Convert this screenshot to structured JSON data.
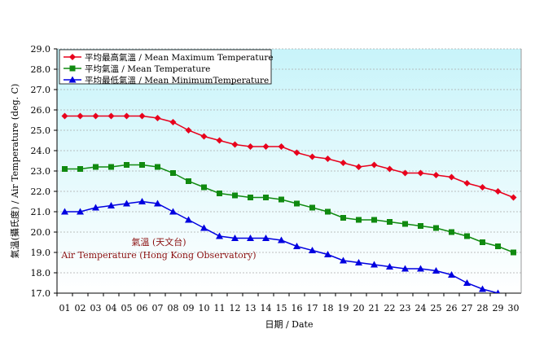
{
  "chart_data": {
    "type": "line",
    "xlabel": "日期 / Date",
    "ylabel": "氣溫(攝氏度) / Air Temperature (deg. C)",
    "ylim": [
      17.0,
      29.0
    ],
    "ytick_step": 1.0,
    "grid": true,
    "legend_position": "top-left",
    "categories": [
      "01",
      "02",
      "03",
      "04",
      "05",
      "06",
      "07",
      "08",
      "09",
      "10",
      "11",
      "12",
      "13",
      "14",
      "15",
      "16",
      "17",
      "18",
      "19",
      "20",
      "21",
      "22",
      "23",
      "24",
      "25",
      "26",
      "27",
      "28",
      "29",
      "30"
    ],
    "series": [
      {
        "name": "平均最高氣溫 / Mean Maximum Temperature",
        "color": "#e8001c",
        "marker": "diamond",
        "values": [
          25.7,
          25.7,
          25.7,
          25.7,
          25.7,
          25.7,
          25.6,
          25.4,
          25.0,
          24.7,
          24.5,
          24.3,
          24.2,
          24.2,
          24.2,
          23.9,
          23.7,
          23.6,
          23.4,
          23.2,
          23.3,
          23.1,
          22.9,
          22.9,
          22.8,
          22.7,
          22.4,
          22.2,
          22.0,
          21.7
        ]
      },
      {
        "name": "平均氣溫 / Mean Temperature",
        "color": "#108a10",
        "marker": "square",
        "values": [
          23.1,
          23.1,
          23.2,
          23.2,
          23.3,
          23.3,
          23.2,
          22.9,
          22.5,
          22.2,
          21.9,
          21.8,
          21.7,
          21.7,
          21.6,
          21.4,
          21.2,
          21.0,
          20.7,
          20.6,
          20.6,
          20.5,
          20.4,
          20.3,
          20.2,
          20.0,
          19.8,
          19.5,
          19.3,
          19.0
        ]
      },
      {
        "name": "平均最低氣溫 / Mean MinimumTemperature",
        "color": "#0000e0",
        "marker": "triangle",
        "values": [
          21.0,
          21.0,
          21.2,
          21.3,
          21.4,
          21.5,
          21.4,
          21.0,
          20.6,
          20.2,
          19.8,
          19.7,
          19.7,
          19.7,
          19.6,
          19.3,
          19.1,
          18.9,
          18.6,
          18.5,
          18.4,
          18.3,
          18.2,
          18.2,
          18.1,
          17.9,
          17.5,
          17.2,
          17.0,
          null
        ]
      }
    ],
    "annotations": [
      "氣溫 (天文台)",
      "Air Temperature (Hong Kong Observatory)"
    ],
    "annotation_color": "#8b1010"
  }
}
